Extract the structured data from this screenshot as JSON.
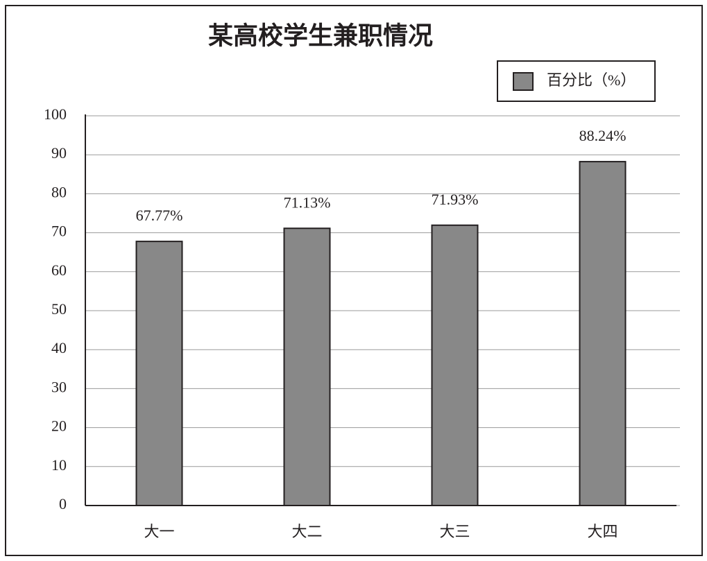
{
  "chart_data": {
    "type": "bar",
    "title": "某高校学生兼职情况",
    "categories": [
      "大一",
      "大二",
      "大三",
      "大四"
    ],
    "series": [
      {
        "name": "百分比（%）",
        "color": "#888888",
        "values": [
          67.77,
          71.13,
          71.93,
          88.24
        ],
        "value_labels": [
          "67.77%",
          "71.13%",
          "71.93%",
          "88.24%"
        ]
      }
    ],
    "ylim": [
      0,
      100
    ],
    "yticks": [
      0,
      10,
      20,
      30,
      40,
      50,
      60,
      70,
      80,
      90,
      100
    ],
    "grid": true,
    "legend": "top-right"
  }
}
